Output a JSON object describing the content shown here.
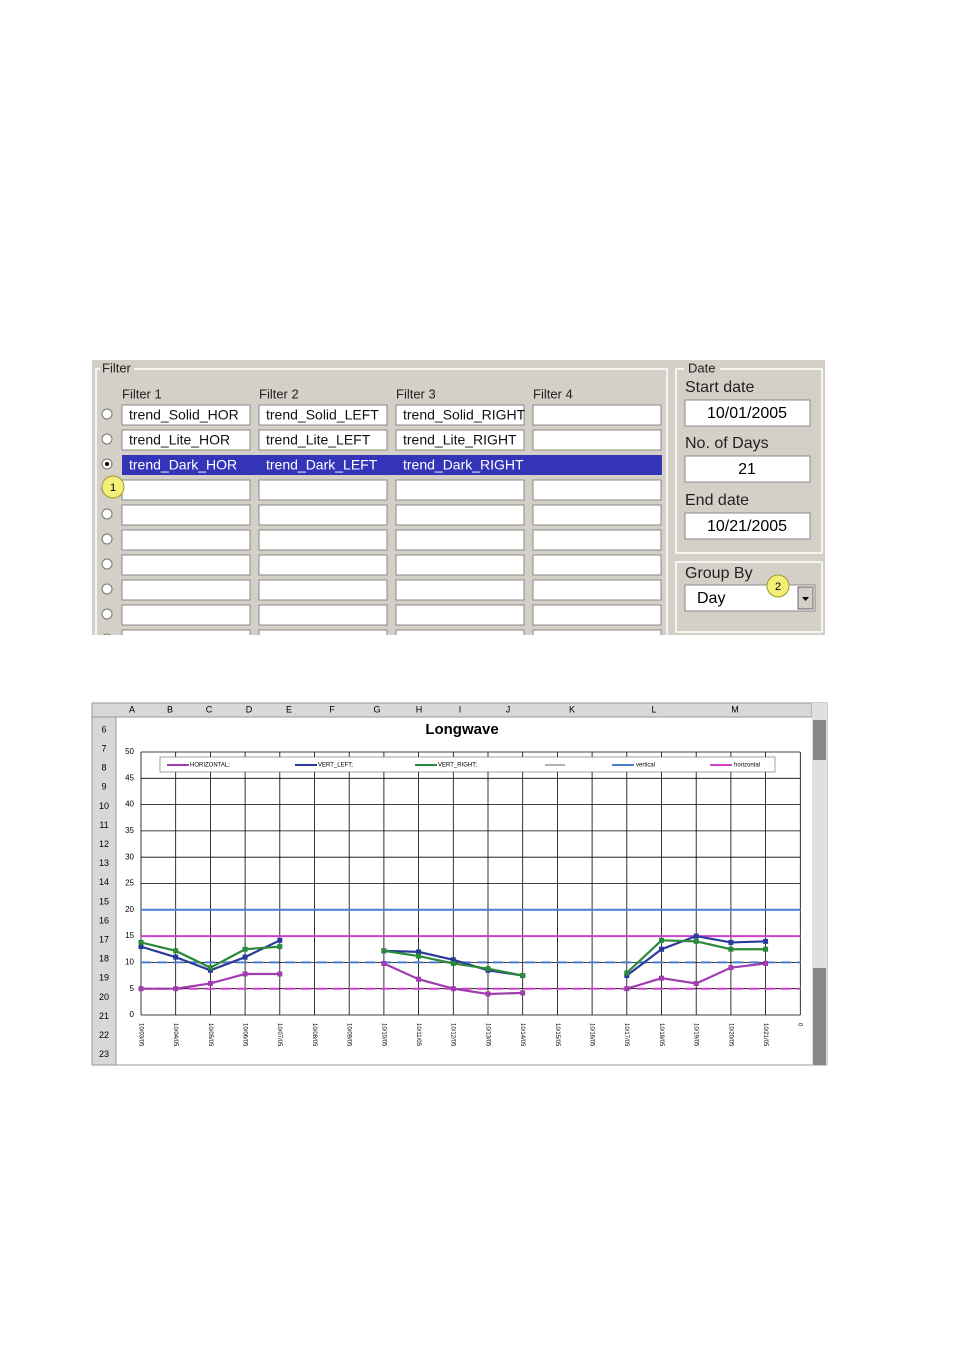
{
  "filter": {
    "title": "Filter",
    "headers": [
      "Filter 1",
      "Filter 2",
      "Filter 3",
      "Filter 4"
    ],
    "rows": [
      [
        "trend_Solid_HOR",
        "trend_Solid_LEFT",
        "trend_Solid_RIGHT"
      ],
      [
        "trend_Lite_HOR",
        "trend_Lite_LEFT",
        "trend_Lite_RIGHT"
      ],
      [
        "trend_Dark_HOR",
        "trend_Dark_LEFT",
        "trend_Dark_RIGHT"
      ]
    ],
    "selected_row": 2
  },
  "date": {
    "title": "Date",
    "start_label": "Start date",
    "start": "10/01/2005",
    "days_label": "No. of Days",
    "days": "21",
    "end_label": "End date",
    "end": "10/21/2005"
  },
  "group_by": {
    "label": "Group By",
    "value": "Day"
  },
  "callouts": [
    "1",
    "2"
  ],
  "sheet": {
    "columns": [
      "A",
      "B",
      "C",
      "D",
      "E",
      "F",
      "G",
      "H",
      "I",
      "J",
      "K",
      "L",
      "M"
    ],
    "rows": [
      "6",
      "7",
      "8",
      "9",
      "10",
      "11",
      "12",
      "13",
      "14",
      "15",
      "16",
      "17",
      "18",
      "19",
      "20",
      "21",
      "22",
      "23"
    ]
  },
  "chart_data": {
    "type": "line",
    "title": "Longwave",
    "categories": [
      "10/03/05",
      "10/04/05",
      "10/05/05",
      "10/06/05",
      "10/07/05",
      "10/08/05",
      "10/09/05",
      "10/10/05",
      "10/11/05",
      "10/12/05",
      "10/13/05",
      "10/14/05",
      "10/15/05",
      "10/16/05",
      "10/17/05",
      "10/18/05",
      "10/19/05",
      "10/20/05",
      "10/21/05",
      "0"
    ],
    "series": [
      {
        "name": "HORIZONTAL;",
        "color": "#a03cb0",
        "values": [
          5,
          5,
          6,
          7.8,
          7.8,
          null,
          null,
          9.8,
          6.8,
          5,
          4,
          4.2,
          null,
          null,
          5,
          7,
          6,
          9,
          9.8,
          null
        ]
      },
      {
        "name": "VERT_LEFT;",
        "color": "#2a3a9a",
        "values": [
          13,
          11,
          8.5,
          11,
          14.2,
          null,
          null,
          12.2,
          12,
          10.5,
          8.5,
          7.5,
          null,
          null,
          7.5,
          12.5,
          15,
          13.8,
          14,
          null
        ]
      },
      {
        "name": "VERT_RIGHT;",
        "color": "#2a8a3a",
        "values": [
          13.8,
          12.2,
          9,
          12.5,
          13,
          null,
          null,
          12.2,
          11.2,
          9.8,
          8.8,
          7.5,
          null,
          null,
          8,
          14.2,
          14,
          12.5,
          12.5,
          null
        ]
      }
    ],
    "reference_lines": [
      {
        "name": "vertical",
        "color": "#4a7fd0",
        "upper": 20,
        "lower": 10
      },
      {
        "name": "horizontal",
        "color": "#d040c8",
        "upper": 15,
        "lower": 5
      }
    ],
    "ylim": [
      0,
      50
    ],
    "yticks": [
      0,
      5,
      10,
      15,
      20,
      25,
      30,
      35,
      40,
      45,
      50
    ],
    "grid": true
  }
}
